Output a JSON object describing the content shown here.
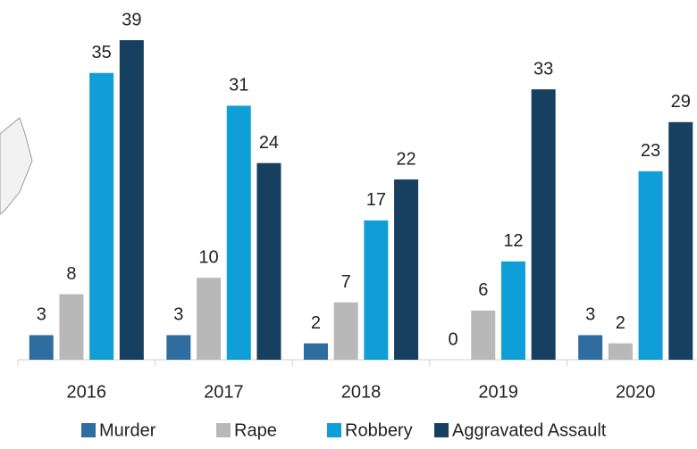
{
  "chart_data": {
    "type": "bar",
    "categories": [
      "2016",
      "2017",
      "2018",
      "2019",
      "2020"
    ],
    "series": [
      {
        "name": "Murder",
        "color": "#2f6c9f",
        "values": [
          3,
          3,
          2,
          0,
          3
        ]
      },
      {
        "name": "Rape",
        "color": "#b8b8b8",
        "values": [
          8,
          10,
          7,
          6,
          2
        ]
      },
      {
        "name": "Robbery",
        "color": "#0f9fd6",
        "values": [
          35,
          31,
          17,
          12,
          23
        ]
      },
      {
        "name": "Aggravated Assault",
        "color": "#173f5f",
        "values": [
          39,
          24,
          22,
          33,
          29
        ]
      }
    ]
  }
}
